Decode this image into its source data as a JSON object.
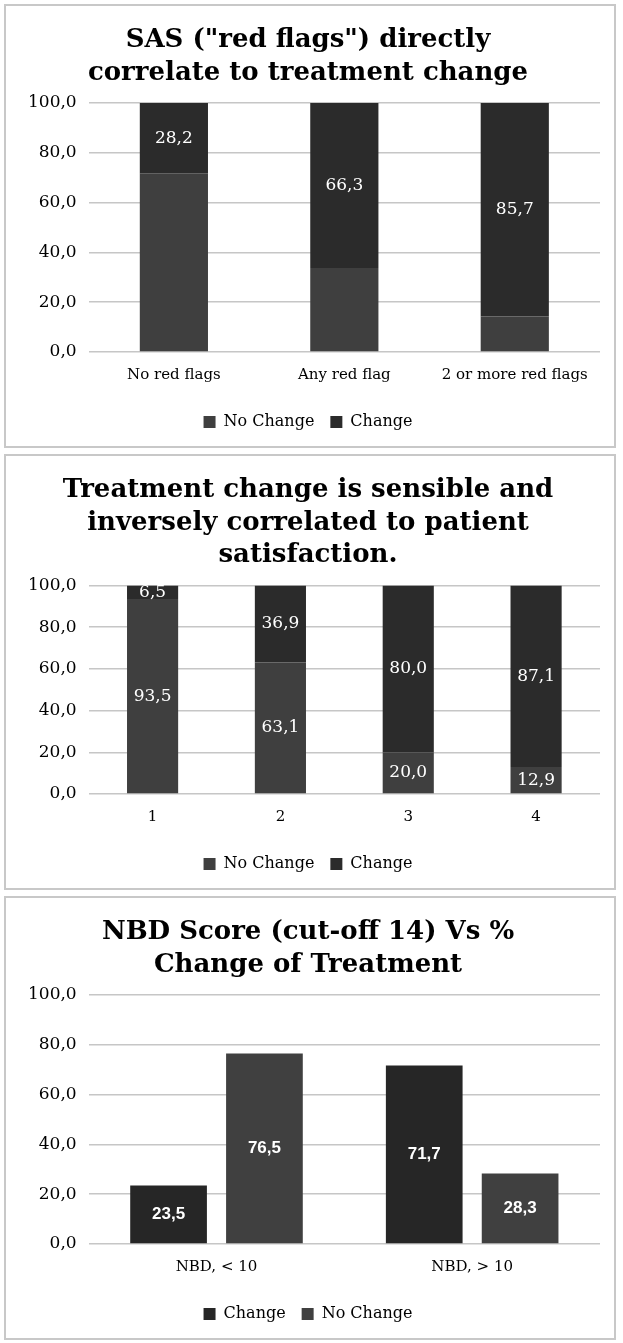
{
  "chart_data": [
    {
      "type": "bar",
      "title": "SAS (\"red flags\") directly correlate to treatment change",
      "categories": [
        "No red flags",
        "Any red flag",
        "2 or more red flags"
      ],
      "stacked": true,
      "grid": "y",
      "legend": "bottom",
      "ylim": [
        0,
        100
      ],
      "yticks": [
        {
          "value": 0,
          "label": "0,0"
        },
        {
          "value": 20,
          "label": "20,0"
        },
        {
          "value": 40,
          "label": "40,0"
        },
        {
          "value": 60,
          "label": "60,0"
        },
        {
          "value": 80,
          "label": "80,0"
        },
        {
          "value": 100,
          "label": "100,0"
        }
      ],
      "series": [
        {
          "name": "No Change",
          "color": "#3f3f3f",
          "values": [
            71.8,
            33.7,
            14.3
          ]
        },
        {
          "name": "Change",
          "color": "#2b2b2b",
          "values": [
            28.2,
            66.3,
            85.7
          ],
          "value_labels": [
            "28,2",
            "66,3",
            "85,7"
          ]
        }
      ]
    },
    {
      "type": "bar",
      "title": "Treatment change is sensible and inversely correlated to patient satisfaction.",
      "categories": [
        "1",
        "2",
        "3",
        "4"
      ],
      "stacked": true,
      "grid": "y",
      "legend": "bottom",
      "ylim": [
        0,
        100
      ],
      "yticks": [
        {
          "value": 0,
          "label": "0,0"
        },
        {
          "value": 20,
          "label": "20,0"
        },
        {
          "value": 40,
          "label": "40,0"
        },
        {
          "value": 60,
          "label": "60,0"
        },
        {
          "value": 80,
          "label": "80,0"
        },
        {
          "value": 100,
          "label": "100,0"
        }
      ],
      "series": [
        {
          "name": "No Change",
          "color": "#3f3f3f",
          "values": [
            93.5,
            63.1,
            20.0,
            12.9
          ],
          "value_labels": [
            "93,5",
            "63,1",
            "20,0",
            "12,9"
          ]
        },
        {
          "name": "Change",
          "color": "#2b2b2b",
          "values": [
            6.5,
            36.9,
            80.0,
            87.1
          ],
          "value_labels": [
            "6,5",
            "36,9",
            "80,0",
            "87,1"
          ]
        }
      ]
    },
    {
      "type": "bar",
      "title": "NBD Score (cut-off 14) Vs % Change of Treatment",
      "categories": [
        "NBD, < 10",
        "NBD, > 10"
      ],
      "grid": "y",
      "legend": "bottom",
      "ylim": [
        0,
        100
      ],
      "yticks": [
        {
          "value": 0,
          "label": "0,0"
        },
        {
          "value": 20,
          "label": "20,0"
        },
        {
          "value": 40,
          "label": "40,0"
        },
        {
          "value": 60,
          "label": "60,0"
        },
        {
          "value": 80,
          "label": "80,0"
        },
        {
          "value": 100,
          "label": "100,0"
        }
      ],
      "series": [
        {
          "name": "Change",
          "color": "#262626",
          "values": [
            23.5,
            71.7
          ],
          "value_labels": [
            "23,5",
            "71,7"
          ]
        },
        {
          "name": "No Change",
          "color": "#404040",
          "values": [
            76.5,
            28.3
          ],
          "value_labels": [
            "76,5",
            "28,3"
          ]
        }
      ]
    }
  ]
}
